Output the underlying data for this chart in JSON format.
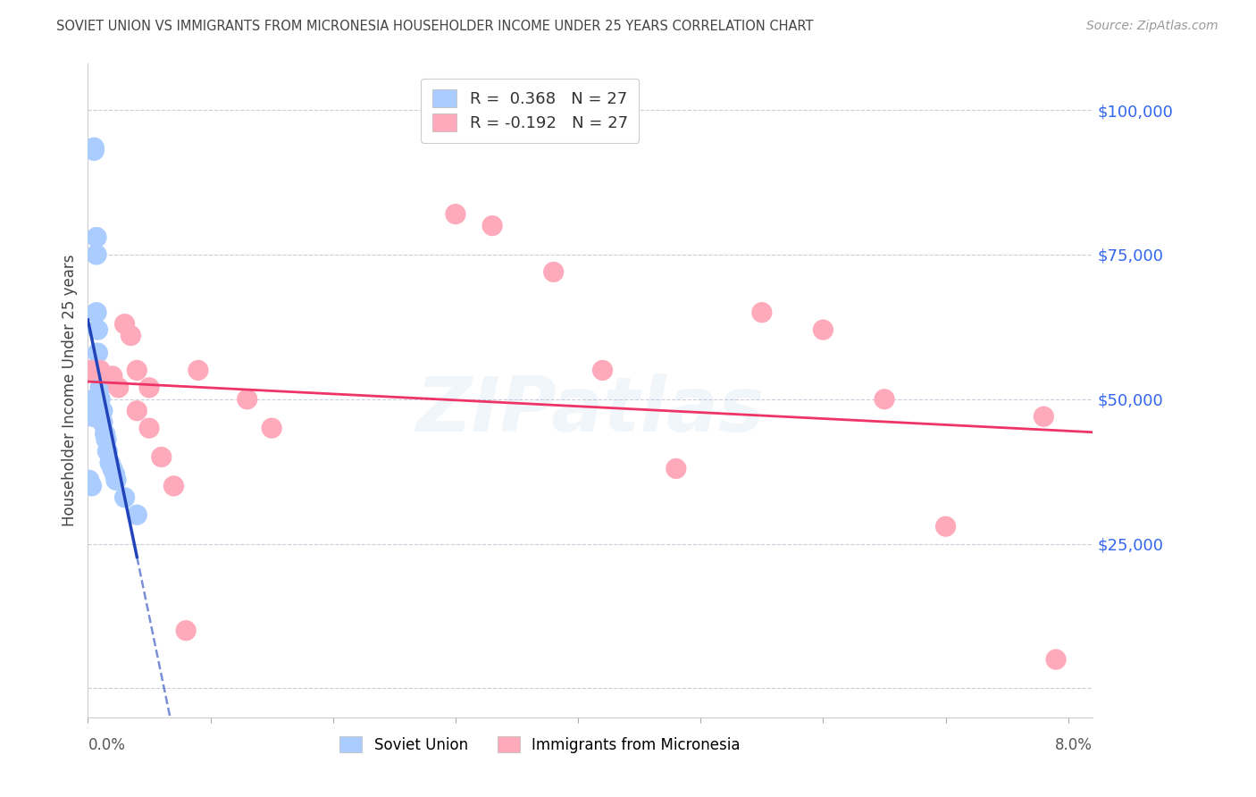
{
  "title": "SOVIET UNION VS IMMIGRANTS FROM MICRONESIA HOUSEHOLDER INCOME UNDER 25 YEARS CORRELATION CHART",
  "source": "Source: ZipAtlas.com",
  "ylabel": "Householder Income Under 25 years",
  "watermark": "ZIPatlas",
  "legend_top": [
    {
      "label": "R =  0.368   N = 27",
      "color": "#aaccff"
    },
    {
      "label": "R = -0.192   N = 27",
      "color": "#ffaabb"
    }
  ],
  "legend_bottom": [
    {
      "label": "Soviet Union",
      "color": "#aaccff"
    },
    {
      "label": "Immigrants from Micronesia",
      "color": "#ffaabb"
    }
  ],
  "yticks": [
    0,
    25000,
    50000,
    75000,
    100000
  ],
  "ytick_labels": [
    "",
    "$25,000",
    "$50,000",
    "$75,000",
    "$100,000"
  ],
  "xlim": [
    0.0,
    0.082
  ],
  "ylim": [
    -5000,
    108000
  ],
  "soviet_union_x": [
    0.0001,
    0.0003,
    0.0004,
    0.0004,
    0.0005,
    0.0005,
    0.0005,
    0.0007,
    0.0007,
    0.0007,
    0.0008,
    0.0008,
    0.0009,
    0.001,
    0.001,
    0.001,
    0.0012,
    0.0012,
    0.0014,
    0.0015,
    0.0016,
    0.0018,
    0.002,
    0.0022,
    0.0023,
    0.003,
    0.004
  ],
  "soviet_union_y": [
    36000,
    35000,
    49000,
    47000,
    93000,
    93500,
    50000,
    78000,
    75000,
    65000,
    62000,
    58000,
    55000,
    54000,
    52000,
    50000,
    48000,
    46000,
    44000,
    43000,
    41000,
    39000,
    38000,
    37000,
    36000,
    33000,
    30000
  ],
  "micronesia_x": [
    0.0002,
    0.001,
    0.002,
    0.0025,
    0.003,
    0.0035,
    0.004,
    0.004,
    0.005,
    0.005,
    0.006,
    0.007,
    0.008,
    0.009,
    0.013,
    0.015,
    0.03,
    0.033,
    0.038,
    0.042,
    0.048,
    0.055,
    0.06,
    0.065,
    0.07,
    0.078,
    0.079
  ],
  "micronesia_y": [
    55000,
    55000,
    54000,
    52000,
    63000,
    61000,
    55000,
    48000,
    52000,
    45000,
    40000,
    35000,
    10000,
    55000,
    50000,
    45000,
    82000,
    80000,
    72000,
    55000,
    38000,
    65000,
    62000,
    50000,
    28000,
    47000,
    5000
  ],
  "blue_line_color": "#2244bb",
  "pink_line_color": "#ee3366",
  "blue_scatter_color": "#aaccff",
  "pink_scatter_color": "#ffaabb",
  "grid_color": "#ccccdd",
  "background_color": "#ffffff",
  "title_color": "#444444",
  "ytick_color": "#3366ee",
  "xtick_color": "#555555",
  "source_color": "#999999"
}
